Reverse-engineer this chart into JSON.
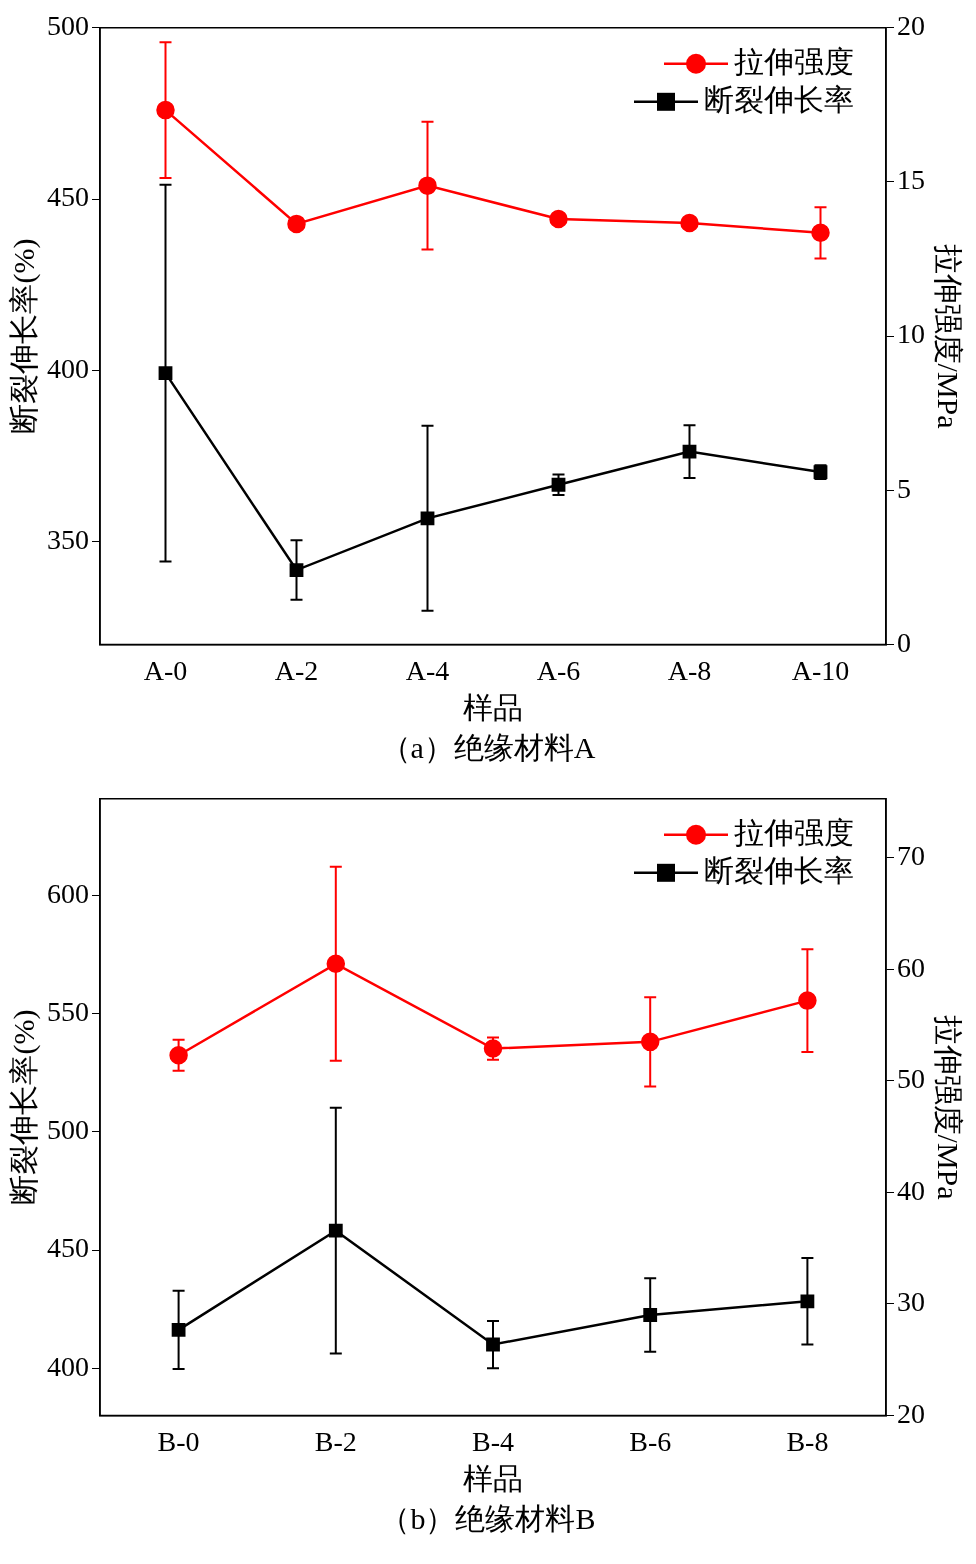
{
  "chart_data": [
    {
      "type": "line",
      "categories": [
        "A-0",
        "A-2",
        "A-4",
        "A-6",
        "A-8",
        "A-10"
      ],
      "xlabel": "样品",
      "ylabel": "断裂伸长率(%)",
      "y2label": "拉伸强度/MPa",
      "ylim": [
        320,
        500
      ],
      "yticks": [
        350,
        400,
        450,
        500
      ],
      "y2lim": [
        0,
        20
      ],
      "y2ticks": [
        0,
        5,
        10,
        15,
        20
      ],
      "grid": false,
      "legend": "top right",
      "annotations": [
        "（a）绝缘材料A"
      ],
      "series": [
        {
          "name": "拉伸强度",
          "color": "#ff0000",
          "axis": "y2",
          "marker": "circle",
          "values": [
            17.33,
            13.64,
            14.88,
            13.8,
            13.67,
            13.35
          ],
          "errors": [
            2.2,
            null,
            2.07,
            null,
            null,
            0.83
          ]
        },
        {
          "name": "断裂伸长率",
          "color": "#000000",
          "marker": "square",
          "values": [
            399.2,
            341.7,
            356.8,
            366.6,
            376.3,
            370.3
          ],
          "errors": [
            55,
            8.7,
            27,
            3,
            7.7,
            2
          ]
        }
      ]
    },
    {
      "type": "line",
      "categories": [
        "B-0",
        "B-2",
        "B-4",
        "B-6",
        "B-8"
      ],
      "xlabel": "样品",
      "ylabel": "断裂伸长率(%)",
      "y2label": "拉伸强度/MPa",
      "ylim": [
        380,
        641
      ],
      "yticks": [
        400,
        450,
        500,
        550,
        600
      ],
      "y2lim": [
        20,
        75.3
      ],
      "y2ticks": [
        20,
        30,
        40,
        50,
        60,
        70
      ],
      "grid": false,
      "legend": "top right",
      "annotations": [
        "（b）绝缘材料B"
      ],
      "series": [
        {
          "name": "拉伸强度",
          "color": "#ff0000",
          "axis": "y2",
          "marker": "circle",
          "values": [
            52.3,
            60.5,
            52.9,
            53.5,
            57.2
          ],
          "errors": [
            1.4,
            8.7,
            1.0,
            4.0,
            4.6
          ]
        },
        {
          "name": "断裂伸长率",
          "color": "#000000",
          "marker": "square",
          "values": [
            416.2,
            458.2,
            410,
            422.5,
            428.3
          ],
          "errors": [
            16.6,
            52,
            10,
            15.6,
            18.3
          ]
        }
      ]
    }
  ]
}
